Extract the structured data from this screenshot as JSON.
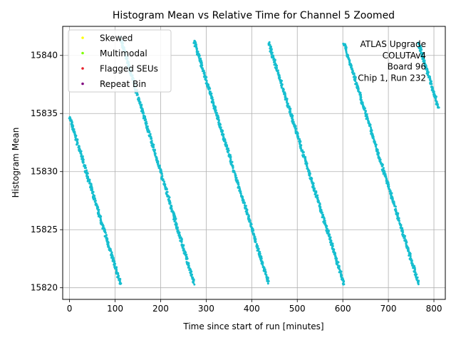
{
  "chart_data": {
    "type": "scatter",
    "title": "Histogram Mean vs Relative Time for Channel 5 Zoomed",
    "xlabel": "Time since start of run [minutes]",
    "ylabel": "Histogram Mean",
    "xlim": [
      -15,
      825
    ],
    "ylim": [
      15819,
      15842.5
    ],
    "x_ticks": [
      0,
      100,
      200,
      300,
      400,
      500,
      600,
      700,
      800
    ],
    "y_ticks": [
      15820,
      15825,
      15830,
      15835,
      15840
    ],
    "grid": true,
    "legend_position": "top-left",
    "legend": [
      {
        "label": "Skewed",
        "color": "#ffff00"
      },
      {
        "label": "Multimodal",
        "color": "#7fff00"
      },
      {
        "label": "Flagged SEUs",
        "color": "#e8202a"
      },
      {
        "label": "Repeat Bin",
        "color": "#800080"
      }
    ],
    "annotation": [
      "ATLAS Upgrade",
      "COLUTAv4",
      "Board 96",
      "Chip 1, Run 232"
    ],
    "series": [
      {
        "color": "#17becf",
        "segments": [
          {
            "x": [
              0,
              112
            ],
            "y": [
              15834.7,
              15820.3
            ]
          },
          {
            "x": [
              112,
              273
            ],
            "y": [
              15841.5,
              15820.4
            ]
          },
          {
            "x": [
              273,
              437
            ],
            "y": [
              15841.3,
              15820.4
            ]
          },
          {
            "x": [
              437,
              602
            ],
            "y": [
              15841.1,
              15820.4
            ]
          },
          {
            "x": [
              602,
              766
            ],
            "y": [
              15841.1,
              15820.4
            ]
          },
          {
            "x": [
              766,
              810
            ],
            "y": [
              15841.1,
              15835.5
            ]
          }
        ]
      }
    ]
  }
}
